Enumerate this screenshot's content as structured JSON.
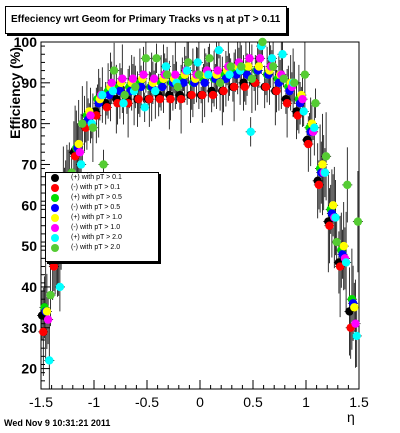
{
  "title": "Effeciency wrt Geom for Primary Tracks vs   η at pT > 0.11",
  "timestamp": "Wed Nov  9 10:31:21 2011",
  "chart_data": {
    "type": "scatter",
    "title": "Effeciency wrt Geom for Primary Tracks vs   η at pT > 0.11",
    "xlabel": "η",
    "ylabel": "Efficiency (%)",
    "xlim": [
      -1.5,
      1.5
    ],
    "ylim": [
      15,
      100
    ],
    "x_ticks": [
      "-1.5",
      "-1",
      "-0.5",
      "0",
      "0.5",
      "1",
      "1.5"
    ],
    "y_ticks": [
      "20",
      "30",
      "40",
      "50",
      "60",
      "70",
      "80",
      "90",
      "100"
    ],
    "grid": false,
    "legend_position": "center-left",
    "series": [
      {
        "name": "(+) with pT > 0.1",
        "color": "#000000",
        "x": [
          -1.45,
          -1.35,
          -1.25,
          -1.15,
          -1.05,
          -0.95,
          -0.85,
          -0.75,
          -0.65,
          -0.55,
          -0.45,
          -0.35,
          -0.25,
          -0.15,
          -0.05,
          0.05,
          0.15,
          0.25,
          0.35,
          0.45,
          0.55,
          0.65,
          0.75,
          0.85,
          0.95,
          1.05,
          1.15,
          1.25,
          1.35,
          1.45
        ],
        "y": [
          33,
          46,
          62,
          73,
          80,
          83,
          85,
          86,
          86,
          86,
          86,
          87,
          87,
          87,
          87,
          87,
          88,
          88,
          89,
          90,
          90,
          89,
          88,
          86,
          83,
          76,
          66,
          56,
          46,
          34
        ]
      },
      {
        "name": "(-) with pT > 0.1",
        "color": "#ff0000",
        "x": [
          -1.45,
          -1.35,
          -1.25,
          -1.15,
          -1.05,
          -0.95,
          -0.85,
          -0.75,
          -0.65,
          -0.55,
          -0.45,
          -0.35,
          -0.25,
          -0.15,
          -0.05,
          0.05,
          0.15,
          0.25,
          0.35,
          0.45,
          0.55,
          0.65,
          0.75,
          0.85,
          0.95,
          1.05,
          1.15,
          1.25,
          1.35,
          1.45
        ],
        "y": [
          29,
          45,
          60,
          72,
          79,
          82,
          84,
          85,
          85,
          86,
          86,
          86,
          86,
          86,
          87,
          87,
          87,
          88,
          89,
          89,
          90,
          89,
          88,
          85,
          82,
          75,
          65,
          55,
          45,
          30
        ]
      },
      {
        "name": "(+) with pT > 0.5",
        "color": "#00dd00",
        "x": [
          -1.45,
          -1.35,
          -1.25,
          -1.15,
          -1.05,
          -0.95,
          -0.85,
          -0.75,
          -0.65,
          -0.55,
          -0.45,
          -0.35,
          -0.25,
          -0.15,
          -0.05,
          0.05,
          0.15,
          0.25,
          0.35,
          0.45,
          0.55,
          0.65,
          0.75,
          0.85,
          0.95,
          1.05,
          1.15,
          1.25,
          1.35,
          1.45
        ],
        "y": [
          35,
          49,
          65,
          74,
          82,
          86,
          88,
          89,
          89,
          90,
          89,
          90,
          90,
          91,
          90,
          91,
          91,
          92,
          93,
          93,
          93,
          92,
          91,
          89,
          86,
          79,
          69,
          59,
          49,
          37
        ]
      },
      {
        "name": "(-) with pT > 0.5",
        "color": "#0000ff",
        "x": [
          -1.45,
          -1.35,
          -1.25,
          -1.15,
          -1.05,
          -0.95,
          -0.85,
          -0.75,
          -0.65,
          -0.55,
          -0.45,
          -0.35,
          -0.25,
          -0.15,
          -0.05,
          0.05,
          0.15,
          0.25,
          0.35,
          0.45,
          0.55,
          0.65,
          0.75,
          0.85,
          0.95,
          1.05,
          1.15,
          1.25,
          1.35,
          1.45
        ],
        "y": [
          34,
          48,
          64,
          74,
          81,
          85,
          87,
          88,
          88,
          89,
          89,
          89,
          90,
          90,
          90,
          90,
          91,
          91,
          92,
          92,
          93,
          92,
          90,
          88,
          85,
          78,
          68,
          58,
          48,
          36
        ]
      },
      {
        "name": "(+) with pT > 1.0",
        "color": "#ffff00",
        "x": [
          -1.45,
          -1.35,
          -1.25,
          -1.15,
          -1.05,
          -0.95,
          -0.85,
          -0.75,
          -0.65,
          -0.55,
          -0.45,
          -0.35,
          -0.25,
          -0.15,
          -0.05,
          0.05,
          0.15,
          0.25,
          0.35,
          0.45,
          0.55,
          0.65,
          0.75,
          0.85,
          0.95,
          1.05,
          1.15,
          1.25,
          1.35,
          1.45
        ],
        "y": [
          34,
          50,
          66,
          75,
          83,
          86,
          89,
          90,
          90,
          91,
          90,
          91,
          91,
          92,
          91,
          92,
          92,
          93,
          94,
          94,
          94,
          93,
          92,
          90,
          87,
          80,
          70,
          60,
          50,
          35
        ]
      },
      {
        "name": "(-) with pT > 1.0",
        "color": "#ff00ff",
        "x": [
          -1.45,
          -1.35,
          -1.25,
          -1.15,
          -1.05,
          -0.95,
          -0.85,
          -0.75,
          -0.65,
          -0.55,
          -0.45,
          -0.35,
          -0.25,
          -0.15,
          -0.05,
          0.05,
          0.15,
          0.25,
          0.35,
          0.45,
          0.55,
          0.65,
          0.75,
          0.85,
          0.95,
          1.05,
          1.15,
          1.25,
          1.35,
          1.45
        ],
        "y": [
          32,
          47,
          63,
          73,
          82,
          87,
          90,
          91,
          91,
          92,
          91,
          92,
          92,
          93,
          92,
          93,
          93,
          94,
          95,
          96,
          96,
          94,
          92,
          89,
          86,
          78,
          68,
          57,
          47,
          31
        ]
      },
      {
        "name": "(+) with pT > 2.0",
        "color": "#00ffff",
        "x": [
          -1.45,
          -1.35,
          -1.25,
          -1.15,
          -1.05,
          -0.95,
          -0.85,
          -0.75,
          -0.65,
          -0.55,
          -0.45,
          -0.35,
          -0.25,
          -0.15,
          -0.05,
          0.05,
          0.15,
          0.25,
          0.35,
          0.45,
          0.55,
          0.65,
          0.75,
          0.85,
          0.95,
          1.05,
          1.15,
          1.25,
          1.35,
          1.45
        ],
        "y": [
          22,
          40,
          57,
          70,
          80,
          87,
          88,
          85,
          88,
          84,
          88,
          94,
          90,
          93,
          95,
          92,
          98,
          92,
          93,
          78,
          99,
          96,
          97,
          90,
          83,
          79,
          68,
          57,
          46,
          28
        ]
      },
      {
        "name": "(-) with pT > 2.0",
        "color": "#55cc33",
        "x": [
          -1.45,
          -1.35,
          -1.25,
          -1.15,
          -1.05,
          -0.95,
          -0.85,
          -0.75,
          -0.65,
          -0.55,
          -0.45,
          -0.35,
          -0.25,
          -0.15,
          -0.05,
          0.05,
          0.15,
          0.25,
          0.35,
          0.45,
          0.55,
          0.65,
          0.75,
          0.85,
          0.95,
          1.05,
          1.15,
          1.25,
          1.35,
          1.45
        ],
        "y": [
          38,
          55,
          68,
          80,
          79,
          70,
          93,
          87,
          89,
          96,
          96,
          92,
          89,
          95,
          92,
          96,
          90,
          94,
          94,
          91,
          100,
          94,
          91,
          90,
          92,
          85,
          72,
          51,
          65,
          56
        ]
      }
    ]
  }
}
